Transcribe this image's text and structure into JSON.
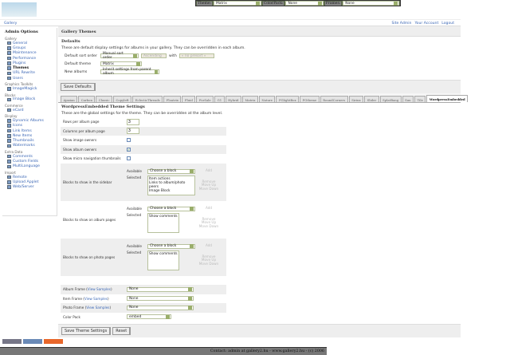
{
  "topbar": {
    "theme_label": "Theme:",
    "theme_value": "Matrix",
    "colorpack_label": "ColorPack:",
    "colorpack_value": "None",
    "frames_label": "Frames:",
    "frames_value": "None"
  },
  "logo": {
    "text": "Gallery"
  },
  "breadcrumb": {
    "root": "Gallery"
  },
  "header_links": [
    "Site Admin",
    "Your Account",
    "Logout"
  ],
  "sidebar": {
    "title": "Admin Options",
    "sections": [
      {
        "title": "Gallery",
        "items": [
          "General",
          "Groups",
          "Maintenance",
          "Performance",
          "Plugins",
          "Themes",
          "URL Rewrite",
          "Users"
        ]
      },
      {
        "title": "Graphics Toolkits",
        "items": [
          "ImageMagick"
        ]
      },
      {
        "title": "Blocks",
        "items": [
          "Image Block"
        ]
      },
      {
        "title": "Commerce",
        "items": [
          "eCard"
        ]
      },
      {
        "title": "Display",
        "items": [
          "Dynamic Albums",
          "Icons",
          "Link Items",
          "New Items",
          "Thumbnails",
          "Watermarks"
        ]
      },
      {
        "title": "Extra Data",
        "items": [
          "Comments",
          "Custom Fields",
          "MultiLanguage"
        ]
      },
      {
        "title": "Import",
        "items": [
          "Remote",
          "Upload Applet",
          "Web/Server"
        ]
      }
    ],
    "current": "Themes"
  },
  "main": {
    "title": "Gallery Themes",
    "defaults": {
      "heading": "Defaults",
      "description": "These are default display settings for albums in your gallery. They can be overridden in each album.",
      "sort_label": "Default sort order",
      "sort_value": "Manual sort order",
      "direction_value": "Ascending",
      "with_label": "with",
      "with_value": "« no presort »",
      "theme_label": "Default theme",
      "theme_value": "Matrix",
      "new_albums_label": "New albums",
      "new_albums_value": "Inherit settings from parent album",
      "save": "Save Defaults"
    },
    "tabs": [
      "Ajaxian",
      "Carbon",
      "Classic",
      "Copyleft",
      "EclecticThreads",
      "Floatrix",
      "Fluid",
      "ForSale",
      "G1",
      "Hybrid",
      "Matrix",
      "Nature",
      "PGlightBox",
      "PGtheme",
      "RoundCorners",
      "Siriux",
      "Slider",
      "SplatBang",
      "Sun",
      "Tile",
      "WordpressEmbedded"
    ],
    "active_tab": "WordpressEmbedded",
    "theme_settings": {
      "heading": "WordpressEmbedded Theme Settings",
      "description": "These are the global settings for the theme. They can be overridden at the album level.",
      "rows_label": "Rows per album page",
      "rows_value": "3",
      "cols_label": "Columns per album page",
      "cols_value": "3",
      "image_owners_label": "Show image owners",
      "image_owners": false,
      "album_owners_label": "Show album owners",
      "album_owners": true,
      "micro_nav_label": "Show micro navigation thumbnails",
      "micro_nav": false,
      "available_label": "Available",
      "selected_label": "Selected",
      "choose": "Choose a block",
      "add": "Add",
      "remove": "Remove",
      "move_up": "Move Up",
      "move_down": "Move Down",
      "sidebar_blocks": {
        "label": "Blocks to show in the sidebar",
        "selected": [
          "Item actions",
          "Links to album/photo peers",
          "Image Block"
        ]
      },
      "album_blocks": {
        "label": "Blocks to show on album pages",
        "selected": [
          "Show comments"
        ]
      },
      "photo_blocks": {
        "label": "Blocks to show on photo pages",
        "selected": [
          "Show comments"
        ]
      },
      "album_frame_label": "Album Frame",
      "item_frame_label": "Item Frame",
      "photo_frame_label": "Photo Frame",
      "view_samples": "View Samples",
      "album_frame": "None",
      "item_frame": "None",
      "photo_frame": "None",
      "color_pack_label": "Color Pack",
      "color_pack": "embed",
      "save": "Save Theme Settings",
      "reset": "Reset"
    }
  },
  "footer": {
    "text": "Contact: admin at gallery2.hu - www.gallery2.hu - (c) 2006"
  }
}
